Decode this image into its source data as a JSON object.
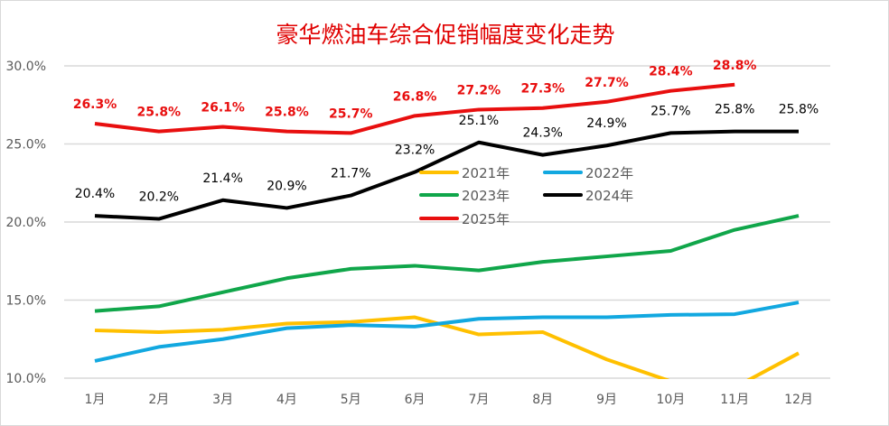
{
  "chart_data": {
    "type": "line",
    "title": "豪华燃油车综合促销幅度变化走势",
    "categories": [
      "1月",
      "2月",
      "3月",
      "4月",
      "5月",
      "6月",
      "7月",
      "8月",
      "9月",
      "10月",
      "11月",
      "12月"
    ],
    "ylim": [
      10,
      30
    ],
    "yticks": [
      "10.0%",
      "15.0%",
      "20.0%",
      "25.0%",
      "30.0%"
    ],
    "grid": true,
    "legend_position": "center",
    "series": [
      {
        "name": "2021年",
        "color": "#ffc000",
        "values": [
          13.06,
          12.95,
          13.1,
          13.5,
          13.6,
          13.9,
          12.8,
          12.95,
          11.2,
          9.8,
          9.4,
          11.6
        ]
      },
      {
        "name": "2022年",
        "color": "#12a8e0",
        "values": [
          11.1,
          12.0,
          12.5,
          13.2,
          13.4,
          13.3,
          13.8,
          13.9,
          13.9,
          14.05,
          14.1,
          14.85
        ]
      },
      {
        "name": "2023年",
        "color": "#10a64a",
        "values": [
          14.3,
          14.6,
          15.5,
          16.4,
          17.0,
          17.2,
          16.9,
          17.45,
          17.8,
          18.15,
          19.5,
          20.4
        ]
      },
      {
        "name": "2024年",
        "color": "#000000",
        "values": [
          20.4,
          20.2,
          21.4,
          20.9,
          21.7,
          23.2,
          25.1,
          24.3,
          24.9,
          25.7,
          25.8,
          25.8
        ],
        "labels": [
          "20.4%",
          "20.2%",
          "21.4%",
          "20.9%",
          "21.7%",
          "23.2%",
          "25.1%",
          "24.3%",
          "24.9%",
          "25.7%",
          "25.8%",
          "25.8%"
        ]
      },
      {
        "name": "2025年",
        "color": "#e80f0f",
        "values": [
          26.3,
          25.8,
          26.1,
          25.8,
          25.7,
          26.8,
          27.2,
          27.3,
          27.7,
          28.4,
          28.8,
          null
        ],
        "labels": [
          "26.3%",
          "25.8%",
          "26.1%",
          "25.8%",
          "25.7%",
          "26.8%",
          "27.2%",
          "27.3%",
          "27.7%",
          "28.4%",
          "28.8%",
          null
        ]
      }
    ]
  }
}
